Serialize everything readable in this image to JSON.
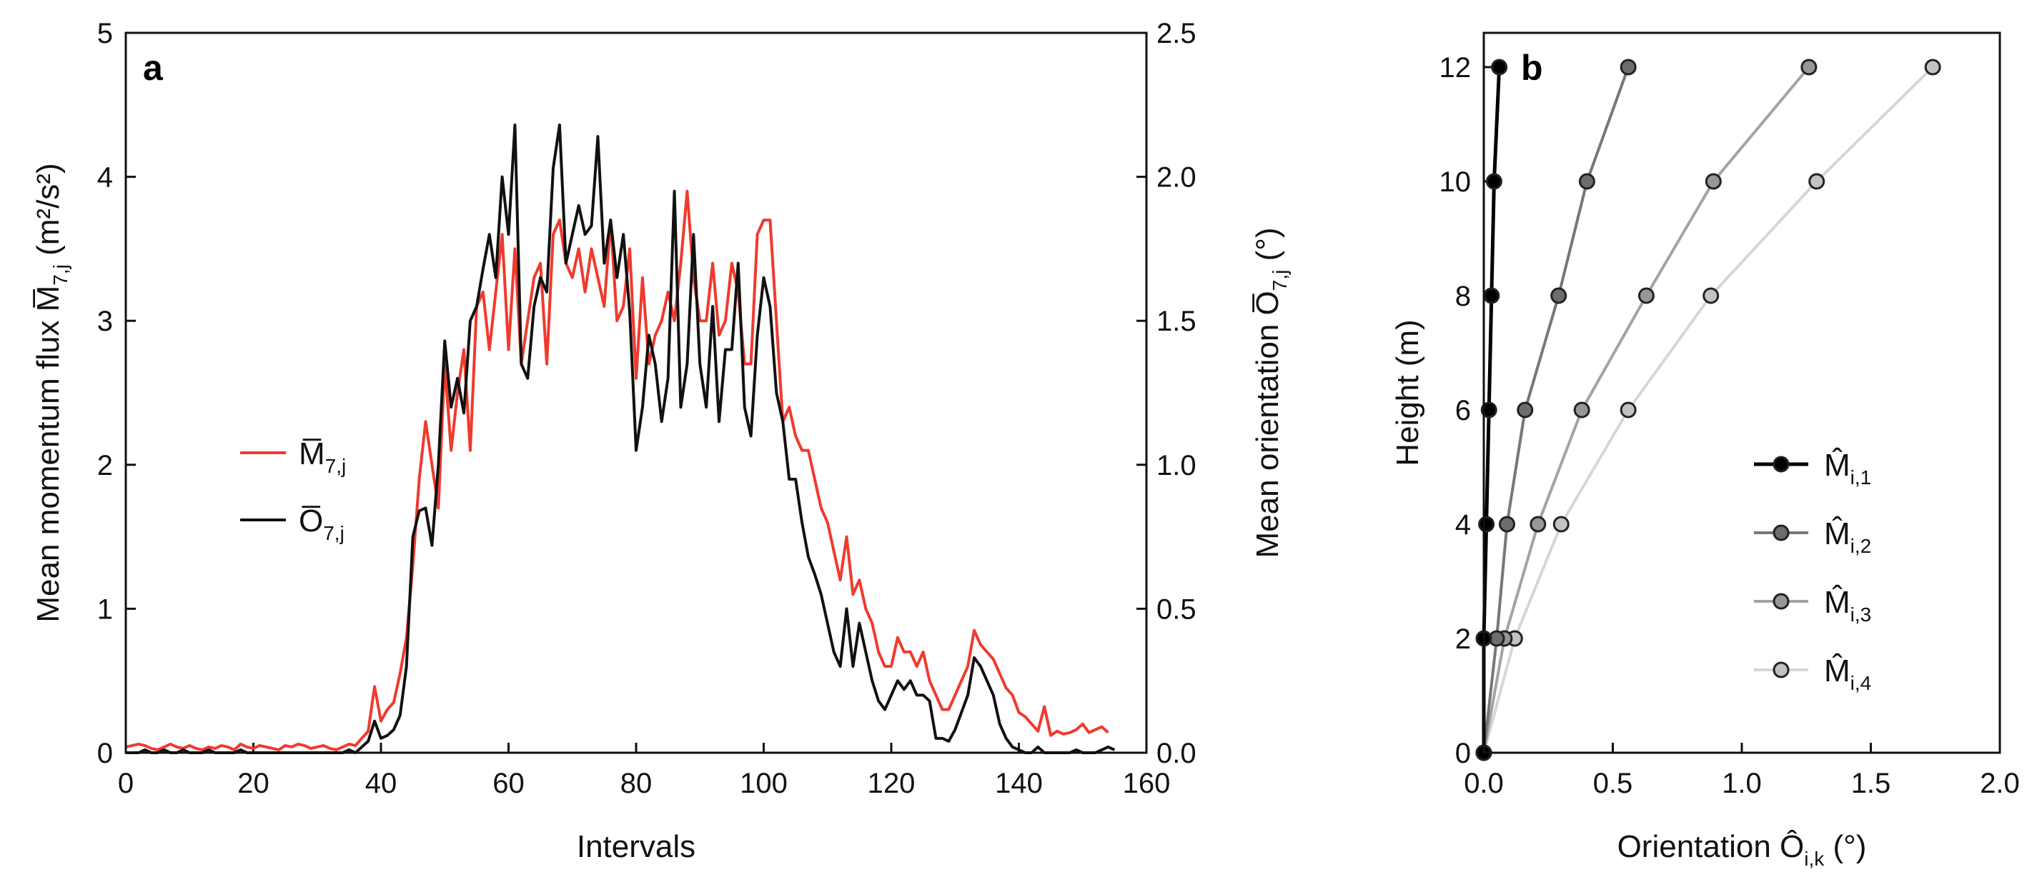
{
  "chart_data": [
    {
      "type": "line",
      "panel": "a",
      "xlabel": "Intervals",
      "ylabel": "Mean momentum flux M̅7,j (m²/s²)",
      "ylabel_parts": {
        "pre": "Mean momentum flux ",
        "sym": "M̅",
        "sub": "7,j",
        "post": " (m²/s²)"
      },
      "y2label": "Mean orientation O̅7,j (°)",
      "y2label_parts": {
        "pre": "Mean orientation ",
        "sym": "O̅",
        "sub": "7,j",
        "post": " (°)"
      },
      "xlim": [
        0,
        160
      ],
      "ylim": [
        0,
        5
      ],
      "y2lim": [
        0,
        2.5
      ],
      "xticks": [
        0,
        20,
        40,
        60,
        80,
        100,
        120,
        140,
        160
      ],
      "yticks": [
        0,
        1,
        2,
        3,
        4,
        5
      ],
      "y2ticks": [
        "0.0",
        "0.5",
        "1.0",
        "1.5",
        "2.0",
        "2.5"
      ],
      "legend_position": "middle-left",
      "series": [
        {
          "name": "M̅7,j",
          "sym": "M̅",
          "sub": "7,j",
          "axis": "left",
          "color": "#f03a2e",
          "x_start": 0,
          "values": [
            0.04,
            0.05,
            0.06,
            0.05,
            0.03,
            0.02,
            0.04,
            0.06,
            0.04,
            0.03,
            0.05,
            0.03,
            0.02,
            0.04,
            0.03,
            0.05,
            0.04,
            0.02,
            0.06,
            0.04,
            0.03,
            0.05,
            0.04,
            0.03,
            0.02,
            0.05,
            0.04,
            0.06,
            0.05,
            0.03,
            0.04,
            0.05,
            0.03,
            0.02,
            0.04,
            0.06,
            0.05,
            0.1,
            0.15,
            0.46,
            0.22,
            0.3,
            0.35,
            0.55,
            0.8,
            1.3,
            1.9,
            2.3,
            2.0,
            1.7,
            2.7,
            2.1,
            2.5,
            2.8,
            2.1,
            3.1,
            3.2,
            2.8,
            3.2,
            3.6,
            2.8,
            3.5,
            2.7,
            3.0,
            3.3,
            3.4,
            2.7,
            3.6,
            3.7,
            3.4,
            3.3,
            3.5,
            3.2,
            3.5,
            3.3,
            3.1,
            3.7,
            3.0,
            3.1,
            3.5,
            2.6,
            3.3,
            2.7,
            2.9,
            3.0,
            3.2,
            3.0,
            3.4,
            3.9,
            3.3,
            3.0,
            3.0,
            3.4,
            2.9,
            3.0,
            3.4,
            3.2,
            2.7,
            2.7,
            3.6,
            3.7,
            3.7,
            3.0,
            2.3,
            2.4,
            2.2,
            2.1,
            2.1,
            1.9,
            1.7,
            1.6,
            1.4,
            1.2,
            1.5,
            1.1,
            1.2,
            1.0,
            0.9,
            0.7,
            0.6,
            0.6,
            0.8,
            0.7,
            0.7,
            0.6,
            0.7,
            0.5,
            0.4,
            0.3,
            0.3,
            0.4,
            0.5,
            0.6,
            0.85,
            0.75,
            0.7,
            0.65,
            0.55,
            0.45,
            0.4,
            0.28,
            0.25,
            0.2,
            0.15,
            0.32,
            0.12,
            0.15,
            0.13,
            0.14,
            0.16,
            0.2,
            0.14,
            0.16,
            0.18,
            0.14
          ]
        },
        {
          "name": "O̅7,j",
          "sym": "O̅",
          "sub": "7,j",
          "axis": "right",
          "color": "#111111",
          "x_start": 0,
          "values": [
            0.0,
            0.0,
            0.0,
            0.01,
            0.0,
            0.0,
            0.01,
            0.0,
            0.0,
            0.01,
            0.0,
            0.0,
            0.0,
            0.01,
            0.0,
            0.0,
            0.0,
            0.0,
            0.01,
            0.0,
            0.0,
            0.0,
            0.0,
            0.0,
            0.0,
            0.0,
            0.0,
            0.0,
            0.0,
            0.0,
            0.0,
            0.0,
            0.0,
            0.0,
            0.0,
            0.01,
            0.0,
            0.02,
            0.04,
            0.11,
            0.05,
            0.06,
            0.08,
            0.13,
            0.3,
            0.75,
            0.84,
            0.85,
            0.72,
            1.0,
            1.43,
            1.2,
            1.3,
            1.18,
            1.5,
            1.55,
            1.68,
            1.8,
            1.65,
            2.0,
            1.8,
            2.18,
            1.35,
            1.3,
            1.55,
            1.65,
            1.6,
            2.03,
            2.18,
            1.7,
            1.8,
            1.9,
            1.8,
            1.83,
            2.14,
            1.7,
            1.85,
            1.65,
            1.8,
            1.53,
            1.05,
            1.2,
            1.45,
            1.35,
            1.15,
            1.3,
            1.95,
            1.2,
            1.35,
            1.8,
            1.35,
            1.2,
            1.55,
            1.15,
            1.4,
            1.4,
            1.7,
            1.2,
            1.1,
            1.45,
            1.65,
            1.55,
            1.25,
            1.15,
            0.95,
            0.95,
            0.8,
            0.68,
            0.62,
            0.55,
            0.45,
            0.35,
            0.3,
            0.5,
            0.3,
            0.45,
            0.35,
            0.25,
            0.18,
            0.15,
            0.2,
            0.25,
            0.22,
            0.25,
            0.2,
            0.2,
            0.18,
            0.05,
            0.05,
            0.04,
            0.08,
            0.14,
            0.2,
            0.33,
            0.3,
            0.25,
            0.2,
            0.1,
            0.05,
            0.02,
            0.01,
            0.0,
            0.0,
            0.02,
            0.0,
            0.0,
            0.0,
            0.0,
            0.0,
            0.01,
            0.0,
            0.0,
            0.0,
            0.01,
            0.02,
            0.01
          ]
        }
      ]
    },
    {
      "type": "line",
      "panel": "b",
      "xlabel": "Orientation Ôi,k (°)",
      "xlabel_parts": {
        "pre": "Orientation ",
        "sym": "Ô",
        "sub": "i,k",
        "post": " (°)"
      },
      "ylabel": "Height (m)",
      "xlim": [
        0,
        2.0
      ],
      "ylim": [
        0,
        12.6
      ],
      "xticks": [
        "0.0",
        "0.5",
        "1.0",
        "1.5",
        "2.0"
      ],
      "yticks": [
        0,
        2,
        4,
        6,
        8,
        10,
        12
      ],
      "legend_position": "bottom-right",
      "series": [
        {
          "name": "M̂i,1",
          "sym": "M̂",
          "sub": "i,1",
          "line_color": "#000000",
          "marker_color": "#000000",
          "line_width": 5,
          "x": [
            0.0,
            0.0,
            0.01,
            0.02,
            0.03,
            0.04,
            0.06
          ],
          "y": [
            0,
            2,
            4,
            6,
            8,
            10,
            12
          ]
        },
        {
          "name": "M̂i,2",
          "sym": "M̂",
          "sub": "i,2",
          "line_color": "#777777",
          "marker_color": "#6d6d6d",
          "line_width": 4,
          "x": [
            0.0,
            0.05,
            0.09,
            0.16,
            0.29,
            0.4,
            0.56
          ],
          "y": [
            0,
            2,
            4,
            6,
            8,
            10,
            12
          ]
        },
        {
          "name": "M̂i,3",
          "sym": "M̂",
          "sub": "i,3",
          "line_color": "#a3a3a3",
          "marker_color": "#979797",
          "line_width": 4,
          "x": [
            0.0,
            0.08,
            0.21,
            0.38,
            0.63,
            0.89,
            1.26
          ],
          "y": [
            0,
            2,
            4,
            6,
            8,
            10,
            12
          ]
        },
        {
          "name": "M̂i,4",
          "sym": "M̂",
          "sub": "i,4",
          "line_color": "#d6d6d6",
          "marker_color": "#c2c2c2",
          "line_width": 4,
          "x": [
            0.0,
            0.12,
            0.3,
            0.56,
            0.88,
            1.29,
            1.74
          ],
          "y": [
            0,
            2,
            4,
            6,
            8,
            10,
            12
          ]
        }
      ]
    }
  ]
}
